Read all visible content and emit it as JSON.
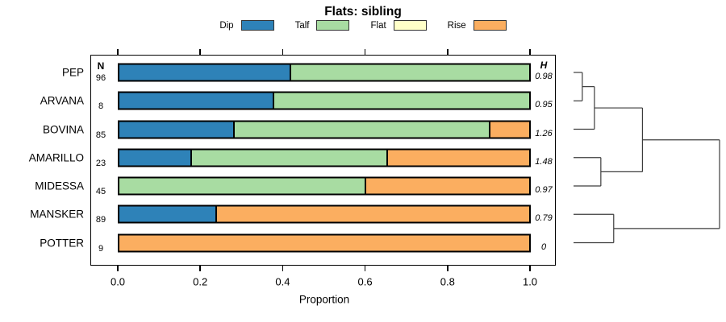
{
  "title": "Flats: sibling",
  "legend": {
    "items": [
      {
        "label": "Dip",
        "color": "#2e82b8"
      },
      {
        "label": "Talf",
        "color": "#a8dca2"
      },
      {
        "label": "Flat",
        "color": "#ffffc8"
      },
      {
        "label": "Rise",
        "color": "#fbae60"
      }
    ]
  },
  "chart_data": {
    "type": "bar",
    "orientation": "horizontal-stacked",
    "title": "Flats: sibling",
    "xlabel": "Proportion",
    "xlim": [
      0,
      1
    ],
    "xticks": [
      0.0,
      0.2,
      0.4,
      0.6,
      0.8,
      1.0
    ],
    "xtick_labels": [
      "0.0",
      "0.2",
      "0.4",
      "0.6",
      "0.8",
      "1.0"
    ],
    "grid": false,
    "legend_position": "top",
    "categories": [
      "PEP",
      "ARVANA",
      "BOVINA",
      "AMARILLO",
      "MIDESSA",
      "MANSKER",
      "POTTER"
    ],
    "n_header": "N",
    "h_header": "H",
    "n_values": [
      96,
      8,
      85,
      23,
      45,
      89,
      9
    ],
    "h_values": [
      "0.98",
      "0.95",
      "1.26",
      "1.48",
      "0.97",
      "0.79",
      "0"
    ],
    "series": [
      {
        "name": "Dip",
        "color": "#2e82b8",
        "values": [
          0.417,
          0.375,
          0.28,
          0.174,
          0,
          0.236,
          0
        ]
      },
      {
        "name": "Talf",
        "color": "#a8dca2",
        "values": [
          0.583,
          0.625,
          0.625,
          0.478,
          0.6,
          0,
          0
        ]
      },
      {
        "name": "Flat",
        "color": "#ffffc8",
        "values": [
          0,
          0,
          0,
          0,
          0,
          0,
          0
        ]
      },
      {
        "name": "Rise",
        "color": "#fbae60",
        "values": [
          0,
          0,
          0.095,
          0.348,
          0.4,
          0.764,
          1.0
        ]
      }
    ],
    "dendrogram": {
      "leaf_order": [
        "PEP",
        "ARVANA",
        "BOVINA",
        "AMARILLO",
        "MIDESSA",
        "MANSKER",
        "POTTER"
      ],
      "merges": [
        {
          "id": "m1",
          "a": "PEP",
          "b": "ARVANA",
          "height": 0.06
        },
        {
          "id": "m2",
          "a": "m1",
          "b": "BOVINA",
          "height": 0.143
        },
        {
          "id": "m3",
          "a": "AMARILLO",
          "b": "MIDESSA",
          "height": 0.187
        },
        {
          "id": "m4",
          "a": "m2",
          "b": "m3",
          "height": 0.472
        },
        {
          "id": "m5",
          "a": "MANSKER",
          "b": "POTTER",
          "height": 0.275
        },
        {
          "id": "m6",
          "a": "m4",
          "b": "m5",
          "height": 1.0
        }
      ]
    }
  }
}
